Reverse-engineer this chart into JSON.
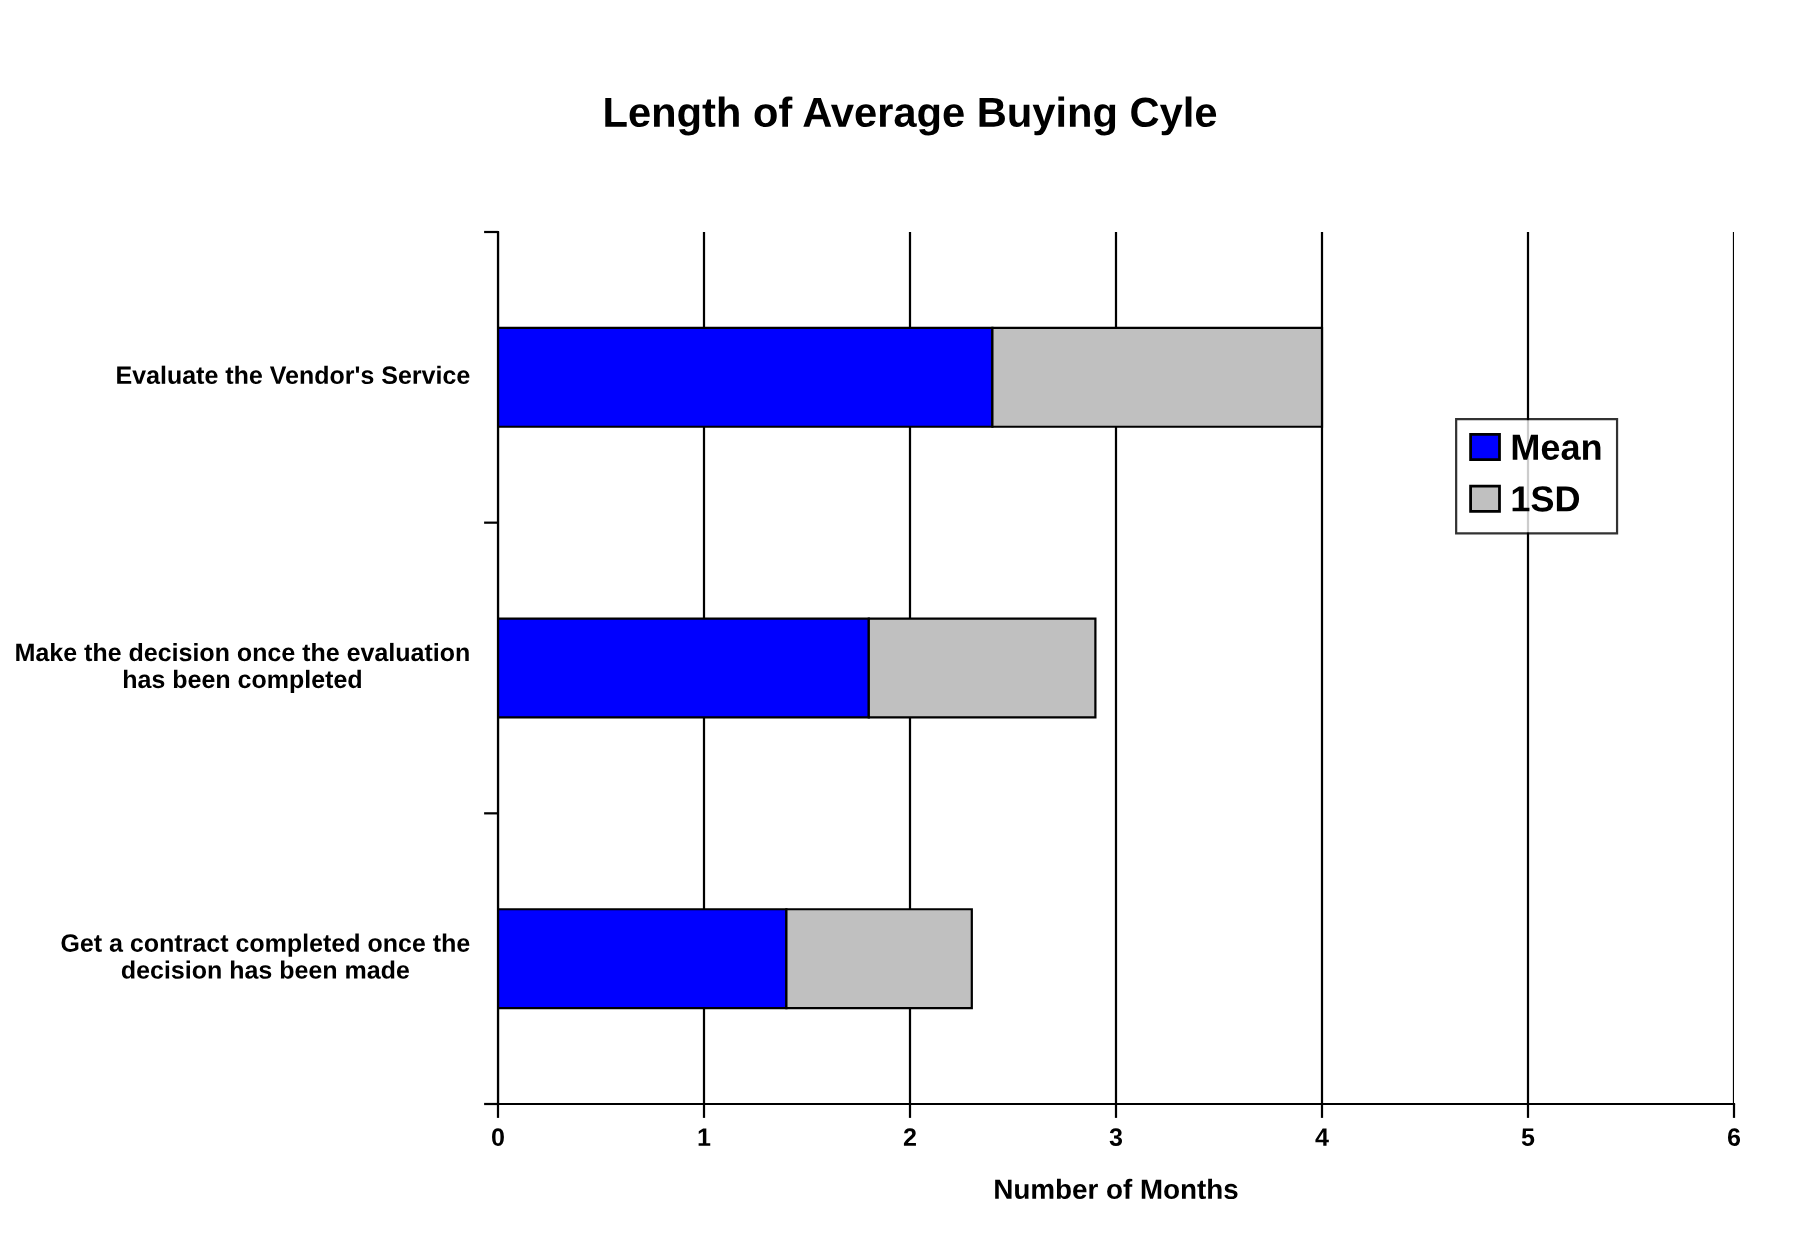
{
  "chart_data": {
    "type": "bar",
    "title": "Length of Average Buying Cyle",
    "xlabel": "Number of Months",
    "orientation": "horizontal",
    "stacked": true,
    "categories": [
      "Evaluate the Vendor's Service",
      "Make the decision once the evaluation has been completed",
      "Get a contract completed once the decision has been made"
    ],
    "series": [
      {
        "name": "Mean",
        "color": "#0000ff",
        "values": [
          2.4,
          1.8,
          1.4
        ]
      },
      {
        "name": "1SD",
        "color": "#c0c0c0",
        "values": [
          1.6,
          1.1,
          0.9
        ]
      }
    ],
    "xlim": [
      0,
      6
    ],
    "xticks": [
      0,
      1,
      2,
      3,
      4,
      5,
      6
    ],
    "grid": "x",
    "legend": "right"
  }
}
